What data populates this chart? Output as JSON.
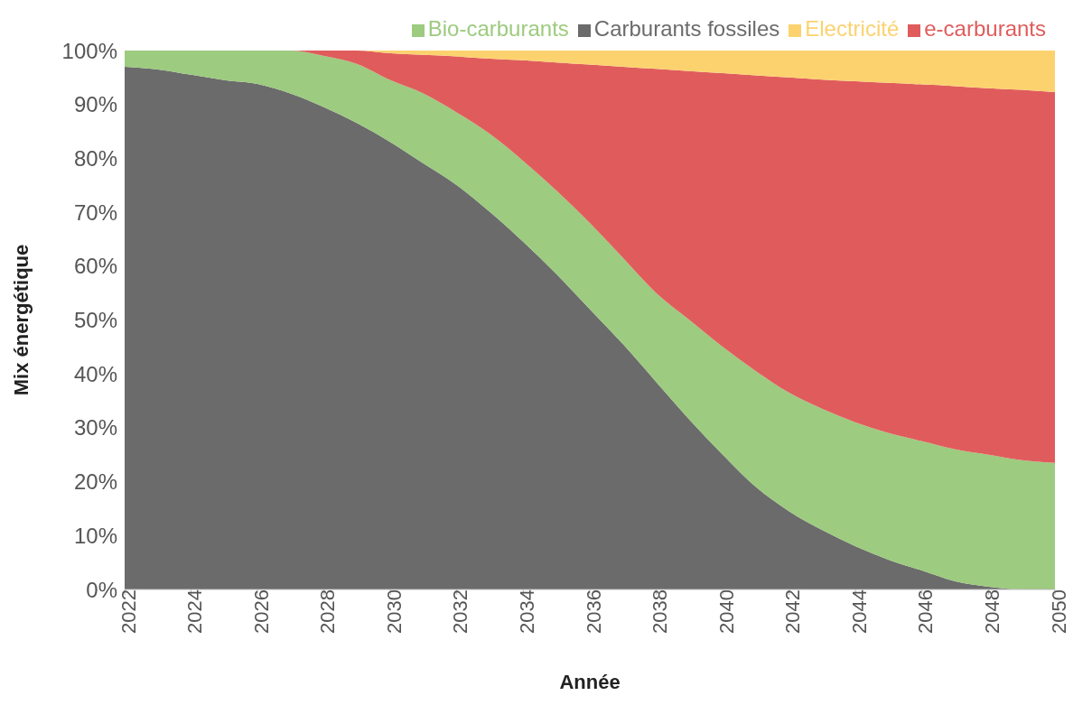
{
  "chart_data": {
    "type": "area",
    "stacked": true,
    "xlabel": "Année",
    "ylabel": "Mix énergétique",
    "x": [
      2022,
      2023,
      2024,
      2025,
      2026,
      2027,
      2028,
      2029,
      2030,
      2031,
      2032,
      2033,
      2034,
      2035,
      2036,
      2037,
      2038,
      2039,
      2040,
      2041,
      2042,
      2043,
      2044,
      2045,
      2046,
      2047,
      2048,
      2049,
      2050
    ],
    "series": [
      {
        "name": "Carburants fossiles",
        "color": "#6b6b6b",
        "values": [
          97,
          96.5,
          95.5,
          94.5,
          93.8,
          92,
          89.5,
          86.5,
          83,
          79,
          75,
          70,
          64.5,
          58.5,
          52,
          45.5,
          38.5,
          31.5,
          25,
          19,
          14.5,
          11,
          8,
          5.5,
          3.5,
          1.5,
          0.5,
          0,
          0
        ]
      },
      {
        "name": "Bio-carburants",
        "color": "#9dcb7f",
        "values": [
          3,
          3.5,
          4.5,
          5.5,
          6.2,
          8,
          9.5,
          11,
          11.5,
          13,
          13.5,
          14.5,
          15,
          15.5,
          16,
          16,
          16.5,
          18.5,
          20,
          21.5,
          22,
          22.5,
          23,
          23.5,
          24,
          24.5,
          24.5,
          24,
          23.5
        ]
      },
      {
        "name": "e-carburants",
        "color": "#e05c5c",
        "values": [
          0,
          0,
          0,
          0,
          0,
          0,
          1,
          2.5,
          5,
          7.2,
          10.4,
          14,
          18.7,
          23.8,
          29.4,
          35.5,
          41.6,
          46.2,
          50.8,
          54.9,
          58.5,
          61.1,
          63.3,
          65,
          66.2,
          67.4,
          68,
          68.7,
          68.8
        ]
      },
      {
        "name": "Electricité",
        "color": "#fcd26f",
        "values": [
          0,
          0,
          0,
          0,
          0,
          0,
          0,
          0,
          0.5,
          0.8,
          1.1,
          1.5,
          1.8,
          2.2,
          2.6,
          3,
          3.4,
          3.8,
          4.2,
          4.6,
          5,
          5.4,
          5.7,
          6,
          6.3,
          6.6,
          7,
          7.3,
          7.7
        ]
      }
    ],
    "xlim": [
      2022,
      2050
    ],
    "xticks": [
      2022,
      2024,
      2026,
      2028,
      2030,
      2032,
      2034,
      2036,
      2038,
      2040,
      2042,
      2044,
      2046,
      2048,
      2050
    ],
    "ylim": [
      0,
      100
    ],
    "yticks": [
      {
        "value": 0,
        "label": "0%"
      },
      {
        "value": 10,
        "label": "10%"
      },
      {
        "value": 20,
        "label": "20%"
      },
      {
        "value": 30,
        "label": "30%"
      },
      {
        "value": 40,
        "label": "40%"
      },
      {
        "value": 50,
        "label": "50%"
      },
      {
        "value": 60,
        "label": "60%"
      },
      {
        "value": 70,
        "label": "70%"
      },
      {
        "value": 80,
        "label": "80%"
      },
      {
        "value": 90,
        "label": "90%"
      },
      {
        "value": 100,
        "label": "100%"
      }
    ],
    "grid": false,
    "legend": "top"
  }
}
